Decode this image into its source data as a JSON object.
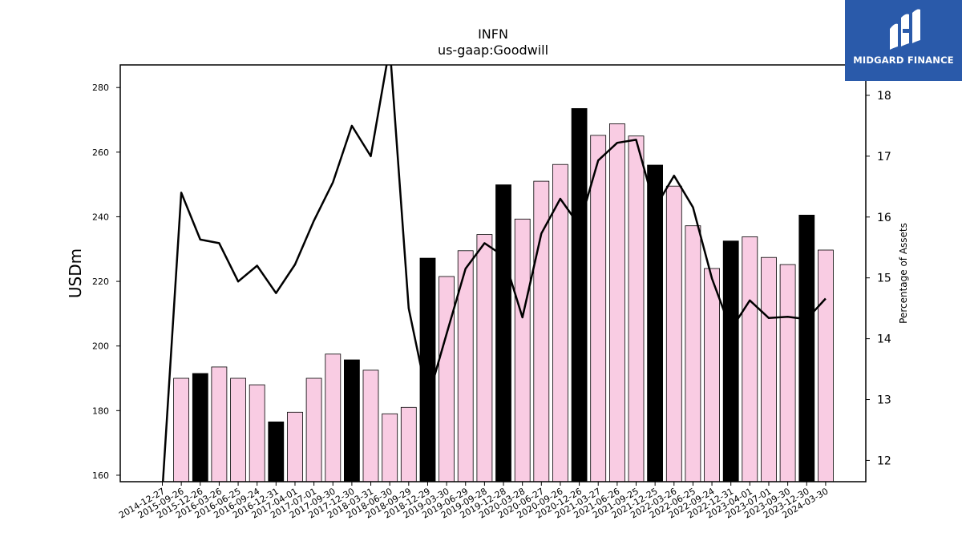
{
  "chart_data": {
    "type": "bar",
    "title": "INFN",
    "subtitle": "us-gaap:Goodwill",
    "ylabel": "USDm",
    "y2label": "Percentage of Assets",
    "ylim": [
      158,
      287
    ],
    "y2lim": [
      11.65,
      18.5
    ],
    "yticks": [
      160,
      180,
      200,
      220,
      240,
      260,
      280
    ],
    "y2ticks": [
      12,
      13,
      14,
      15,
      16,
      17,
      18
    ],
    "categories": [
      "2014-12-27",
      "2015-09-26",
      "2015-12-26",
      "2016-03-26",
      "2016-06-25",
      "2016-09-24",
      "2016-12-31",
      "2017-04-01",
      "2017-07-01",
      "2017-09-30",
      "2017-12-30",
      "2018-03-31",
      "2018-06-30",
      "2018-09-29",
      "2018-12-29",
      "2019-03-30",
      "2019-06-29",
      "2019-09-28",
      "2019-12-28",
      "2020-03-28",
      "2020-06-27",
      "2020-09-26",
      "2020-12-26",
      "2021-03-27",
      "2021-06-26",
      "2021-09-25",
      "2021-12-25",
      "2022-03-26",
      "2022-06-25",
      "2022-09-24",
      "2022-12-31",
      "2023-04-01",
      "2023-07-01",
      "2023-09-30",
      "2023-12-30",
      "2024-03-30"
    ],
    "series": [
      {
        "kind": "bar",
        "values": [
          158,
          190,
          191.5,
          193.5,
          190,
          188,
          176.5,
          179.5,
          190,
          197.5,
          195.7,
          192.5,
          179,
          181,
          227.2,
          221.5,
          229.5,
          234.5,
          249.9,
          239.3,
          251,
          256.2,
          273.5,
          265.2,
          268.8,
          265,
          256,
          249.5,
          237.2,
          224,
          232.5,
          233.8,
          227.4,
          225.2,
          240.5,
          229.7
        ],
        "highlight": [
          false,
          false,
          true,
          false,
          false,
          false,
          true,
          false,
          false,
          false,
          true,
          false,
          false,
          false,
          true,
          false,
          false,
          false,
          true,
          false,
          false,
          false,
          true,
          false,
          false,
          false,
          true,
          false,
          false,
          false,
          true,
          false,
          false,
          false,
          true,
          false
        ]
      },
      {
        "kind": "line",
        "axis": "right",
        "values": [
          11.5,
          16.4,
          15.63,
          15.57,
          14.94,
          15.2,
          14.75,
          15.22,
          15.94,
          16.57,
          17.5,
          17.0,
          18.8,
          14.5,
          13.0,
          14.08,
          15.15,
          15.57,
          15.36,
          14.35,
          15.73,
          16.3,
          15.86,
          16.93,
          17.22,
          17.27,
          16.15,
          16.68,
          16.16,
          14.99,
          14.15,
          14.63,
          14.34,
          14.36,
          14.32,
          14.66
        ]
      }
    ],
    "colors": {
      "bar": "#f9cce3",
      "bar_highlight": "#000000",
      "line": "#000000"
    },
    "grid": false
  },
  "logo": {
    "brand": "MIDGARD FINANCE"
  }
}
